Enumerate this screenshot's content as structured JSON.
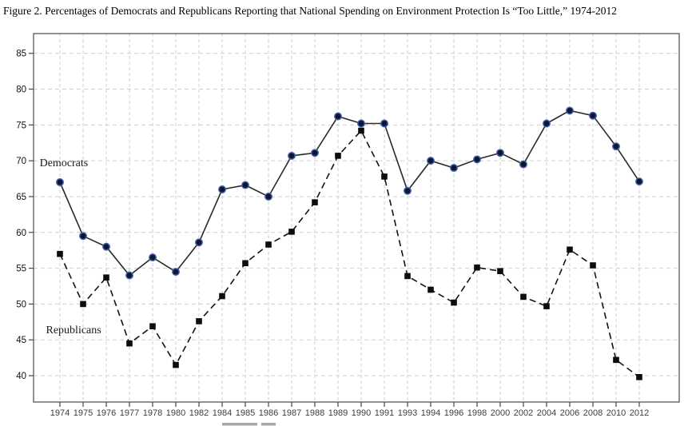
{
  "title": "Figure 2. Percentages of Democrats and Republicans Reporting that National Spending on Environment Protection Is “Too Little,” 1974-2012",
  "chart_data": {
    "type": "line",
    "title": "Figure 2. Percentages of Democrats and Republicans Reporting that National Spending on Environment Protection Is “Too Little,” 1974-2012",
    "xlabel": "",
    "ylabel": "",
    "categories": [
      "1974",
      "1975",
      "1976",
      "1977",
      "1978",
      "1980",
      "1982",
      "1984",
      "1985",
      "1986",
      "1987",
      "1988",
      "1989",
      "1990",
      "1991",
      "1993",
      "1994",
      "1996",
      "1998",
      "2000",
      "2002",
      "2004",
      "2006",
      "2008",
      "2010",
      "2012"
    ],
    "yticks": [
      40,
      45,
      50,
      55,
      60,
      65,
      70,
      75,
      80,
      85
    ],
    "ylim": [
      36.4,
      87.8
    ],
    "grid": "dashed-both-axes",
    "plot_border": true,
    "series": [
      {
        "name": "Democrats",
        "line_style": "solid",
        "marker": "circle",
        "line_color": "#2a2a2a",
        "marker_fill": "#10162e",
        "marker_stroke": "#3c5fae",
        "values": [
          67.0,
          59.5,
          58.0,
          54.0,
          56.5,
          54.5,
          58.6,
          66.0,
          66.6,
          65.0,
          70.7,
          71.1,
          76.2,
          75.2,
          75.2,
          65.8,
          70.0,
          69.0,
          70.2,
          71.1,
          69.5,
          75.2,
          77.0,
          76.3,
          72.0,
          67.1
        ]
      },
      {
        "name": "Republicans",
        "line_style": "dashed",
        "marker": "square",
        "line_color": "#141414",
        "marker_fill": "#0d0d0d",
        "marker_stroke": "#0d0d0d",
        "values": [
          57.0,
          50.0,
          53.7,
          44.5,
          46.9,
          41.5,
          47.6,
          51.1,
          55.7,
          58.3,
          60.1,
          64.2,
          70.7,
          74.2,
          67.8,
          53.9,
          52.0,
          50.2,
          55.1,
          54.6,
          51.0,
          49.7,
          57.6,
          55.4,
          42.2,
          39.8
        ]
      }
    ],
    "annotations": [
      {
        "text": "Democrats",
        "x_index": 0.17,
        "y_value": 69.8
      },
      {
        "text": "Republicans",
        "x_index": 0.59,
        "y_value": 46.5
      }
    ],
    "legend_position": "bottom-cut-off",
    "colors": {
      "grid": "#cfcfcf",
      "plot_border": "#58585a",
      "tick": "#444444",
      "y_tick_label": "#111111",
      "x_tick_label": "#3d3d3d",
      "annotation_text": "#1a1a1a",
      "legend_fragment": "#a8a8a8",
      "background": "#ffffff"
    }
  }
}
